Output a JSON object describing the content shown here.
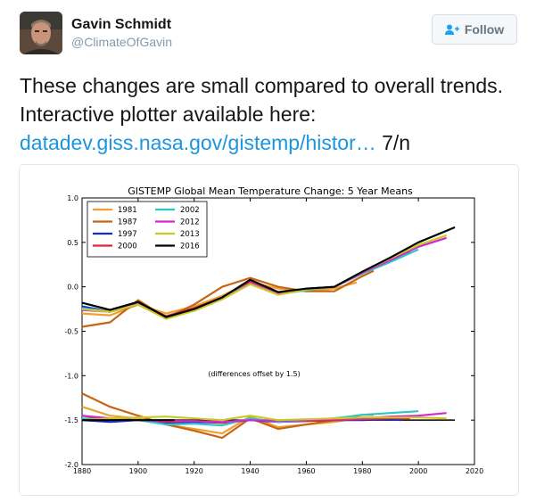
{
  "author": {
    "name": "Gavin Schmidt",
    "handle": "@ClimateOfGavin"
  },
  "follow_button": {
    "label": "Follow",
    "icon": "add-user-icon"
  },
  "tweet": {
    "text_line1": "These changes are small compared to overall trends. Interactive plotter available here:",
    "link": "datadev.giss.nasa.gov/gistemp/histor…",
    "suffix": " 7/n"
  },
  "colors": {
    "1981": "#f0a030",
    "1987": "#c86414",
    "1997": "#1428dc",
    "2000": "#e02828",
    "2002": "#28c8c8",
    "2012": "#d228d2",
    "2013": "#c8c828",
    "2016": "#000000"
  },
  "chart_data": {
    "type": "line",
    "title": "GISTEMP Global Mean Temperature Change: 5 Year Means",
    "xlim": [
      1880,
      2020
    ],
    "ylim": [
      -2.0,
      1.0
    ],
    "x_ticks": [
      "1880",
      "1900",
      "1920",
      "1940",
      "1960",
      "1980",
      "2000",
      "2020"
    ],
    "y_ticks": [
      "1.0",
      "0.5",
      "0.0",
      "-0.5",
      "-1.0",
      "-1.5",
      "-2.0"
    ],
    "annotation": "(differences offset by 1.5)",
    "legend_position": "top-left",
    "series": [
      {
        "name": "1981",
        "color": "#f0a030",
        "x": [
          1880,
          1890,
          1900,
          1910,
          1920,
          1930,
          1940,
          1950,
          1960,
          1970,
          1978
        ],
        "values": [
          -0.3,
          -0.32,
          -0.2,
          -0.3,
          -0.22,
          -0.1,
          0.05,
          -0.02,
          -0.05,
          -0.02,
          0.05
        ]
      },
      {
        "name": "1987",
        "color": "#c86414",
        "x": [
          1880,
          1890,
          1900,
          1910,
          1920,
          1930,
          1940,
          1950,
          1960,
          1970,
          1980,
          1984
        ],
        "values": [
          -0.45,
          -0.4,
          -0.15,
          -0.35,
          -0.2,
          0.0,
          0.1,
          0.0,
          -0.05,
          -0.05,
          0.12,
          0.18
        ]
      },
      {
        "name": "1997",
        "color": "#1428dc",
        "x": [
          1880,
          1890,
          1900,
          1910,
          1920,
          1930,
          1940,
          1950,
          1960,
          1970,
          1980,
          1990,
          1994
        ],
        "values": [
          -0.22,
          -0.28,
          -0.2,
          -0.35,
          -0.25,
          -0.12,
          0.05,
          -0.08,
          -0.02,
          0.0,
          0.15,
          0.3,
          0.35
        ]
      },
      {
        "name": "2000",
        "color": "#e02828",
        "x": [
          1880,
          1890,
          1900,
          1910,
          1920,
          1930,
          1940,
          1950,
          1960,
          1970,
          1980,
          1990,
          1997
        ],
        "values": [
          -0.25,
          -0.27,
          -0.18,
          -0.33,
          -0.24,
          -0.12,
          0.06,
          -0.07,
          -0.03,
          0.0,
          0.15,
          0.3,
          0.4
        ]
      },
      {
        "name": "2002",
        "color": "#28c8c8",
        "x": [
          1880,
          1890,
          1900,
          1910,
          1920,
          1930,
          1940,
          1950,
          1960,
          1970,
          1980,
          1990,
          2000
        ],
        "values": [
          -0.24,
          -0.28,
          -0.18,
          -0.34,
          -0.25,
          -0.13,
          0.04,
          -0.08,
          -0.04,
          0.0,
          0.15,
          0.28,
          0.42
        ]
      },
      {
        "name": "2012",
        "color": "#d228d2",
        "x": [
          1880,
          1890,
          1900,
          1910,
          1920,
          1930,
          1940,
          1950,
          1960,
          1970,
          1980,
          1990,
          2000,
          2010
        ],
        "values": [
          -0.26,
          -0.28,
          -0.19,
          -0.34,
          -0.25,
          -0.14,
          0.04,
          -0.08,
          -0.03,
          0.0,
          0.16,
          0.3,
          0.45,
          0.55
        ]
      },
      {
        "name": "2013",
        "color": "#c8c828",
        "x": [
          1880,
          1890,
          1900,
          1910,
          1920,
          1930,
          1940,
          1950,
          1960,
          1970,
          1980,
          1990,
          2000,
          2010
        ],
        "values": [
          -0.25,
          -0.28,
          -0.2,
          -0.36,
          -0.27,
          -0.14,
          0.03,
          -0.09,
          -0.03,
          0.0,
          0.17,
          0.32,
          0.47,
          0.58
        ]
      },
      {
        "name": "2016",
        "color": "#000000",
        "x": [
          1880,
          1890,
          1900,
          1910,
          1920,
          1930,
          1940,
          1950,
          1960,
          1970,
          1980,
          1990,
          2000,
          2010,
          2013
        ],
        "values": [
          -0.18,
          -0.26,
          -0.17,
          -0.34,
          -0.25,
          -0.12,
          0.08,
          -0.06,
          -0.02,
          0.0,
          0.17,
          0.33,
          0.5,
          0.63,
          0.67
        ]
      }
    ],
    "difference_series": [
      {
        "name": "1981",
        "color": "#f0a030",
        "x": [
          1880,
          1890,
          1900,
          1910,
          1920,
          1930,
          1940,
          1950,
          1960,
          1970,
          1978
        ],
        "values": [
          -1.35,
          -1.45,
          -1.48,
          -1.55,
          -1.6,
          -1.65,
          -1.46,
          -1.58,
          -1.55,
          -1.52,
          -1.48
        ]
      },
      {
        "name": "1987",
        "color": "#c86414",
        "x": [
          1880,
          1890,
          1900,
          1910,
          1920,
          1930,
          1940,
          1950,
          1960,
          1970,
          1980,
          1984
        ],
        "values": [
          -1.2,
          -1.35,
          -1.45,
          -1.55,
          -1.62,
          -1.7,
          -1.48,
          -1.6,
          -1.55,
          -1.5,
          -1.44,
          -1.44
        ]
      },
      {
        "name": "1997",
        "color": "#1428dc",
        "x": [
          1880,
          1890,
          1900,
          1910,
          1920,
          1930,
          1940,
          1950,
          1960,
          1970,
          1980,
          1990,
          1994
        ],
        "values": [
          -1.5,
          -1.52,
          -1.5,
          -1.53,
          -1.52,
          -1.53,
          -1.5,
          -1.52,
          -1.51,
          -1.5,
          -1.5,
          -1.49,
          -1.5
        ]
      },
      {
        "name": "2000",
        "color": "#e02828",
        "x": [
          1880,
          1890,
          1900,
          1910,
          1920,
          1930,
          1940,
          1950,
          1960,
          1970,
          1980,
          1990,
          1997
        ],
        "values": [
          -1.45,
          -1.5,
          -1.5,
          -1.52,
          -1.51,
          -1.53,
          -1.49,
          -1.51,
          -1.51,
          -1.5,
          -1.49,
          -1.48,
          -1.48
        ]
      },
      {
        "name": "2002",
        "color": "#28c8c8",
        "x": [
          1880,
          1890,
          1900,
          1910,
          1920,
          1930,
          1940,
          1950,
          1960,
          1970,
          1980,
          1990,
          2000
        ],
        "values": [
          -1.48,
          -1.5,
          -1.5,
          -1.55,
          -1.54,
          -1.56,
          -1.48,
          -1.52,
          -1.5,
          -1.48,
          -1.44,
          -1.42,
          -1.4
        ]
      },
      {
        "name": "2012",
        "color": "#d228d2",
        "x": [
          1880,
          1890,
          1900,
          1910,
          1920,
          1930,
          1940,
          1950,
          1960,
          1970,
          1980,
          1990,
          2000,
          2010
        ],
        "values": [
          -1.45,
          -1.48,
          -1.5,
          -1.51,
          -1.51,
          -1.52,
          -1.5,
          -1.51,
          -1.5,
          -1.49,
          -1.48,
          -1.46,
          -1.45,
          -1.42
        ]
      },
      {
        "name": "2013",
        "color": "#c8c828",
        "x": [
          1880,
          1890,
          1900,
          1910,
          1920,
          1930,
          1940,
          1950,
          1960,
          1970,
          1980,
          1990,
          2000,
          2010
        ],
        "values": [
          -1.5,
          -1.48,
          -1.47,
          -1.46,
          -1.48,
          -1.5,
          -1.45,
          -1.5,
          -1.49,
          -1.48,
          -1.47,
          -1.47,
          -1.47,
          -1.48
        ]
      },
      {
        "name": "2016",
        "color": "#000000",
        "x": [
          1880,
          1913
        ],
        "values": [
          -1.5,
          -1.5
        ]
      }
    ],
    "baseline": {
      "y": -1.5,
      "x": [
        1880,
        2013
      ]
    }
  }
}
